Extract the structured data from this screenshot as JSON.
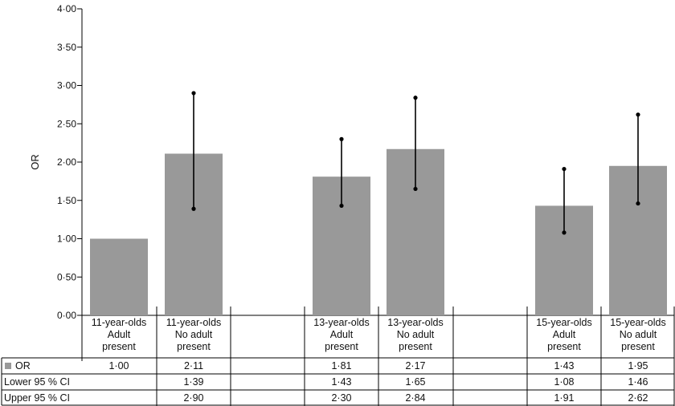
{
  "chart_data": {
    "type": "bar",
    "ylabel": "OR",
    "ylim": [
      0,
      4
    ],
    "yticks": [
      "0·00",
      "0·50",
      "1·00",
      "1·50",
      "2·00",
      "2·50",
      "3·00",
      "3·50",
      "4·00"
    ],
    "categories": [
      {
        "line1": "11-year-olds",
        "line2": "Adult",
        "line3": "present"
      },
      {
        "line1": "11-year-olds",
        "line2": "No adult",
        "line3": "present"
      },
      {
        "line1": "13-year-olds",
        "line2": "Adult",
        "line3": "present"
      },
      {
        "line1": "13-year-olds",
        "line2": "No adult",
        "line3": "present"
      },
      {
        "line1": "15-year-olds",
        "line2": "Adult",
        "line3": "present"
      },
      {
        "line1": "15-year-olds",
        "line2": "No adult",
        "line3": "present"
      }
    ],
    "values": [
      1.0,
      2.11,
      1.81,
      2.17,
      1.43,
      1.95
    ],
    "lower": [
      null,
      1.39,
      1.43,
      1.65,
      1.08,
      1.46
    ],
    "upper": [
      null,
      2.9,
      2.3,
      2.84,
      1.91,
      2.62
    ],
    "bar_color": "#999999",
    "table": {
      "rows": [
        {
          "label": "OR",
          "values": [
            "1·00",
            "2·11",
            "1·81",
            "2·17",
            "1·43",
            "1·95"
          ]
        },
        {
          "label": "Lower 95 % CI",
          "values": [
            "",
            "1·39",
            "1·43",
            "1·65",
            "1·08",
            "1·46"
          ]
        },
        {
          "label": "Upper 95 % CI",
          "values": [
            "",
            "2·90",
            "2·30",
            "2·84",
            "1·91",
            "2·62"
          ]
        }
      ]
    }
  }
}
